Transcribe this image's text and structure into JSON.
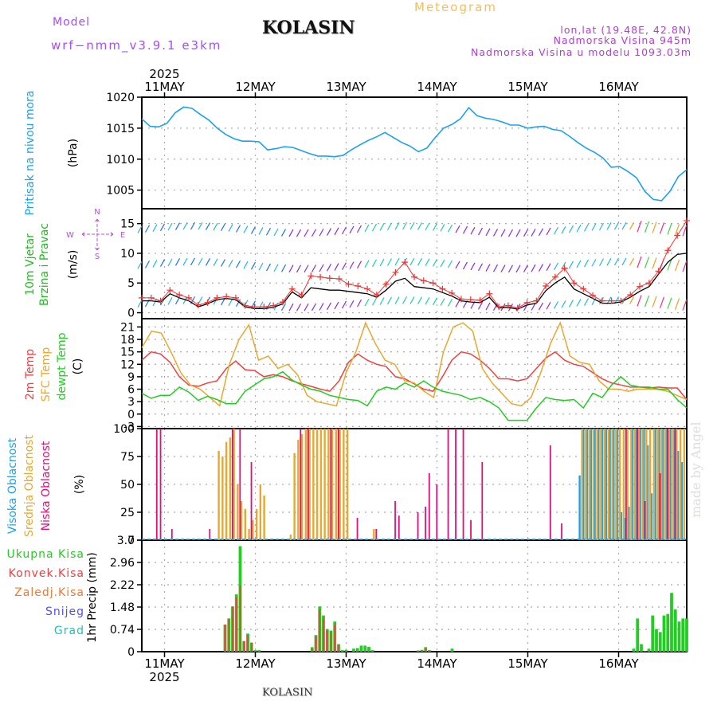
{
  "header": {
    "model_label": "Model",
    "model_name": "wrf−nmm_v3.9.1  e3km",
    "station_title": "KOLASIN",
    "chart_type": "Meteogram",
    "coords": "lon,lat (19.48E, 42.8N)",
    "elevation": "Nadmorska Visina 945m",
    "model_elevation": "Nadmorska Visina u modelu 1093.03m"
  },
  "footer": {
    "station_title": "KOLASIN",
    "watermark": "made by Angel"
  },
  "time_axis": {
    "year": "2025",
    "days": [
      "11MAY",
      "12MAY",
      "13MAY",
      "14MAY",
      "15MAY",
      "16MAY"
    ],
    "start_hours_before_first_day": 6,
    "total_hours": 144
  },
  "colors": {
    "pressure": "#1ea0f0",
    "wind_speed_label": "#22bb22",
    "temp2m": "#f04040",
    "sfc_temp": "#e8a830",
    "dewpoint": "#22cc22",
    "cloud_high": "#1ea0f0",
    "cloud_mid": "#e8a830",
    "cloud_low": "#e0107a",
    "precip_total": "#22cc22",
    "precip_conv": "#f04040",
    "compass": "#b050e0",
    "gust": "#ee3333",
    "wind_mean": "#000000"
  },
  "chart_data": [
    {
      "type": "line",
      "panel": "pressure",
      "ylabel_main": "Pritisak na nivou mora",
      "ylabel_unit": "(hPa)",
      "ylim": [
        1002,
        1020
      ],
      "yticks": [
        1005,
        1010,
        1015,
        1020
      ],
      "grid": true,
      "x_hours_step": 3,
      "series": [
        {
          "name": "MSLP",
          "values": [
            1016.5,
            1015.3,
            1015.2,
            1015.8,
            1017.5,
            1018.4,
            1018.2,
            1017.2,
            1016.3,
            1015.0,
            1014.0,
            1013.3,
            1012.9,
            1012.9,
            1012.8,
            1011.5,
            1011.7,
            1012.0,
            1011.9,
            1011.4,
            1010.9,
            1010.5,
            1010.5,
            1010.4,
            1010.6,
            1011.5,
            1012.3,
            1013.0,
            1013.6,
            1014.3,
            1013.5,
            1012.7,
            1012.1,
            1011.2,
            1011.8,
            1013.5,
            1015.0,
            1015.6,
            1016.5,
            1018.3,
            1017.0,
            1016.6,
            1016.4,
            1016.0,
            1015.5,
            1015.5,
            1015.0,
            1015.2,
            1015.3,
            1014.8,
            1014.6,
            1013.7,
            1012.7,
            1011.8,
            1011.1,
            1010.2,
            1008.7,
            1008.8,
            1008.0,
            1007.0,
            1004.8,
            1003.5,
            1003.3,
            1004.8,
            1007.2,
            1008.3
          ]
        }
      ]
    },
    {
      "type": "line",
      "panel": "wind",
      "ylabel_main": [
        "10m Vjetar",
        "Brzina i Pravac"
      ],
      "ylabel_unit": "(m/s)",
      "compass": {
        "n": "N",
        "s": "S",
        "w": "W",
        "e": "E"
      },
      "ylim": [
        -1,
        17.5
      ],
      "yticks": [
        0,
        5,
        10,
        15
      ],
      "grid": true,
      "series": [
        {
          "name": "gust",
          "values": [
            2.5,
            2.5,
            2.0,
            3.8,
            3.0,
            2.5,
            1.3,
            1.7,
            2.5,
            2.7,
            2.5,
            1.2,
            1.0,
            1.0,
            1.2,
            1.8,
            4.0,
            3.0,
            6.2,
            6.0,
            5.8,
            5.7,
            4.8,
            4.5,
            4.0,
            3.0,
            4.8,
            6.8,
            8.5,
            6.0,
            5.4,
            5.0,
            4.0,
            3.3,
            2.3,
            2.2,
            2.1,
            3.2,
            1.0,
            1.2,
            0.8,
            1.7,
            2.0,
            4.5,
            6.0,
            7.5,
            5.0,
            4.0,
            2.9,
            2.0,
            2.0,
            2.0,
            3.0,
            4.4,
            5.0,
            7.0,
            10.5,
            13.0,
            15.5
          ]
        },
        {
          "name": "mean",
          "values": [
            2.0,
            2.0,
            1.8,
            3.2,
            2.5,
            2.0,
            1.0,
            1.5,
            2.2,
            2.4,
            2.2,
            1.0,
            0.7,
            0.7,
            0.9,
            1.5,
            3.5,
            2.5,
            4.2,
            4.0,
            3.8,
            3.8,
            3.6,
            3.4,
            3.2,
            2.6,
            3.8,
            5.3,
            5.8,
            4.4,
            4.2,
            4.0,
            3.4,
            2.8,
            2.0,
            1.8,
            1.7,
            2.6,
            0.8,
            0.9,
            0.6,
            1.3,
            1.6,
            3.7,
            5.0,
            6.0,
            4.0,
            3.2,
            2.4,
            1.6,
            1.6,
            1.8,
            2.6,
            3.6,
            4.4,
            6.5,
            8.5,
            9.8,
            10.0
          ]
        }
      ]
    },
    {
      "type": "line",
      "panel": "temperature",
      "ylabel_main": [
        "2m Temp",
        "SFC Temp",
        "dewpt Temp"
      ],
      "ylabel_unit": "(C)",
      "ylim": [
        -3.5,
        23
      ],
      "yticks": [
        -3,
        0,
        3,
        6,
        9,
        12,
        15,
        18,
        21
      ],
      "grid": true,
      "series": [
        {
          "name": "2m Temp",
          "values": [
            13,
            15,
            14.5,
            12.5,
            9,
            7,
            6.7,
            7.5,
            8,
            11,
            12.8,
            10.7,
            10.5,
            9,
            9.5,
            9,
            8,
            7.3,
            6.7,
            6,
            5.5,
            8,
            12.5,
            14.5,
            13,
            12,
            11.5,
            9,
            8.5,
            7.3,
            6,
            5.5,
            9,
            13,
            15,
            14.5,
            13,
            11,
            8.5,
            8.5,
            8,
            8.5,
            11,
            13.5,
            15,
            13,
            12,
            11.5,
            10,
            8.5,
            7.5,
            7,
            6.5,
            6.5,
            6.3,
            6.5,
            6.3,
            6.3,
            3.5
          ]
        },
        {
          "name": "SFC Temp",
          "values": [
            16,
            20,
            19.5,
            15,
            10,
            7,
            6,
            4,
            2,
            12,
            18,
            21.5,
            13,
            14,
            11,
            12,
            9.5,
            4.5,
            3,
            2.5,
            2,
            10,
            15,
            22,
            17,
            13,
            12,
            8,
            7.5,
            5.5,
            4,
            15,
            21,
            22,
            20,
            11,
            7.5,
            5,
            2.5,
            2,
            4,
            10,
            17,
            22,
            14,
            12.5,
            12,
            8,
            6,
            6,
            5.5,
            6,
            6,
            6,
            5.5,
            4.5,
            3.5
          ]
        },
        {
          "name": "dewpt Temp",
          "values": [
            5,
            3.8,
            4.5,
            4.5,
            6.5,
            5.3,
            3.3,
            4.3,
            3.5,
            2.5,
            2.5,
            5.5,
            7,
            8.5,
            9,
            10.2,
            8.2,
            7,
            6,
            5.5,
            4.5,
            4,
            3.5,
            3.3,
            2,
            5.5,
            6.5,
            6,
            7.5,
            6.5,
            8,
            6.5,
            5.5,
            5,
            4.5,
            3.5,
            4,
            3,
            1.5,
            -1.5,
            -1.5,
            -1.5,
            1.5,
            4,
            3.5,
            3.3,
            3.5,
            1.5,
            5,
            4,
            7,
            9,
            7,
            6.5,
            6.5,
            6,
            6,
            3.5,
            1.5
          ]
        }
      ]
    },
    {
      "type": "bar",
      "panel": "clouds",
      "ylabel_main": [
        "Visoka Oblacnost",
        "Srednja Oblacnost",
        "Niska Oblacnost"
      ],
      "ylabel_unit": "(%)",
      "ylim": [
        0,
        100
      ],
      "yticks": [
        0,
        25,
        50,
        75,
        100
      ],
      "grid": true,
      "series": [
        {
          "name": "Visoka Oblacnost",
          "hours": [
            116,
            117,
            118,
            119,
            120,
            121,
            122,
            123,
            124,
            125,
            126,
            127,
            128,
            129,
            130,
            131,
            132,
            133,
            134,
            135,
            136,
            137,
            138,
            139,
            140,
            141,
            142,
            143
          ],
          "values": [
            58,
            100,
            100,
            100,
            100,
            100,
            100,
            100,
            100,
            100,
            100,
            25,
            20,
            30,
            100,
            100,
            100,
            100,
            85,
            42,
            100,
            100,
            100,
            100,
            100,
            100,
            80,
            70
          ]
        },
        {
          "name": "Srednja Oblacnost",
          "hours": [
            20,
            21,
            22,
            23,
            24,
            25,
            26,
            27,
            28,
            29,
            30,
            31,
            32,
            39,
            40,
            41,
            42,
            43,
            44,
            45,
            46,
            47,
            48,
            49,
            50,
            51,
            52,
            53,
            54,
            61,
            116,
            117,
            118,
            119,
            120,
            121,
            122,
            123,
            124,
            125,
            126,
            127,
            128,
            129,
            130,
            131,
            132,
            133,
            134,
            135,
            136,
            137,
            138,
            139,
            140,
            141,
            142,
            143
          ],
          "values": [
            80,
            75,
            88,
            92,
            100,
            50,
            35,
            28,
            10,
            18,
            28,
            50,
            40,
            5,
            78,
            90,
            95,
            100,
            100,
            100,
            100,
            100,
            100,
            100,
            100,
            100,
            100,
            100,
            100,
            10,
            100,
            100,
            100,
            100,
            100,
            100,
            100,
            100,
            100,
            100,
            100,
            100,
            100,
            100,
            100,
            100,
            100,
            100,
            100,
            100,
            100,
            100,
            100,
            100,
            100,
            100,
            100,
            100
          ]
        },
        {
          "name": "Niska Oblacnost",
          "hours": [
            4,
            5,
            8,
            18,
            24,
            26,
            29,
            42,
            44,
            50,
            52,
            57,
            62,
            67,
            68,
            73,
            75,
            76,
            78,
            81,
            83,
            85,
            87,
            90,
            108,
            111,
            128,
            131,
            133,
            137,
            139,
            141
          ],
          "values": [
            100,
            100,
            10,
            10,
            100,
            100,
            70,
            100,
            100,
            100,
            100,
            20,
            10,
            35,
            22,
            25,
            30,
            60,
            50,
            100,
            100,
            100,
            18,
            70,
            85,
            15,
            100,
            100,
            35,
            60,
            100,
            100
          ]
        }
      ]
    },
    {
      "type": "bar",
      "panel": "precip",
      "ylabel_main": "1hr Precip (mm)",
      "legend": [
        "Ukupna Kisa",
        "Konvek.Kisa",
        "Zaledj.Kisa",
        "Snijeg",
        "Grad"
      ],
      "legend_placement": "left",
      "ylim": [
        0,
        3.7
      ],
      "yticks": [
        0,
        0.74,
        1.48,
        2.22,
        2.96,
        3.7
      ],
      "grid": true,
      "series": [
        {
          "name": "Ukupna Kisa",
          "hours": [
            22,
            23,
            24,
            25,
            26,
            27,
            28,
            29,
            30,
            31,
            45,
            46,
            47,
            48,
            49,
            50,
            51,
            52,
            53,
            54,
            56,
            57,
            58,
            59,
            60,
            61,
            73,
            74,
            75,
            76,
            82,
            130,
            131,
            132,
            133,
            134,
            135,
            136,
            137,
            138,
            139,
            140,
            141,
            142,
            143,
            144
          ],
          "values": [
            0.9,
            1.1,
            1.5,
            1.9,
            3.5,
            0.35,
            0.6,
            0.3,
            0.05,
            0.05,
            0.15,
            0.55,
            1.5,
            1.2,
            0.75,
            0.7,
            1.0,
            0.25,
            0.05,
            0.06,
            0.1,
            0.12,
            0.2,
            0.2,
            0.16,
            0.05,
            0.04,
            0.06,
            0.15,
            0.05,
            0.1,
            0.1,
            1.1,
            0.25,
            0.02,
            0.1,
            1.2,
            0.75,
            0.65,
            1.2,
            1.25,
            1.95,
            1.4,
            1.0,
            1.1,
            1.1
          ]
        },
        {
          "name": "Konvek.Kisa",
          "hours": [
            22,
            23,
            24,
            25,
            26,
            27,
            28,
            29,
            45,
            46,
            47,
            48,
            49,
            50,
            51,
            52,
            73,
            74,
            75,
            76
          ],
          "values": [
            0.9,
            1.1,
            1.5,
            1.8,
            2.2,
            0.35,
            0.55,
            0.3,
            0.1,
            0.5,
            1.4,
            1.1,
            0.7,
            0.65,
            0.9,
            0.22,
            0.03,
            0.05,
            0.1,
            0.04
          ]
        }
      ]
    }
  ]
}
